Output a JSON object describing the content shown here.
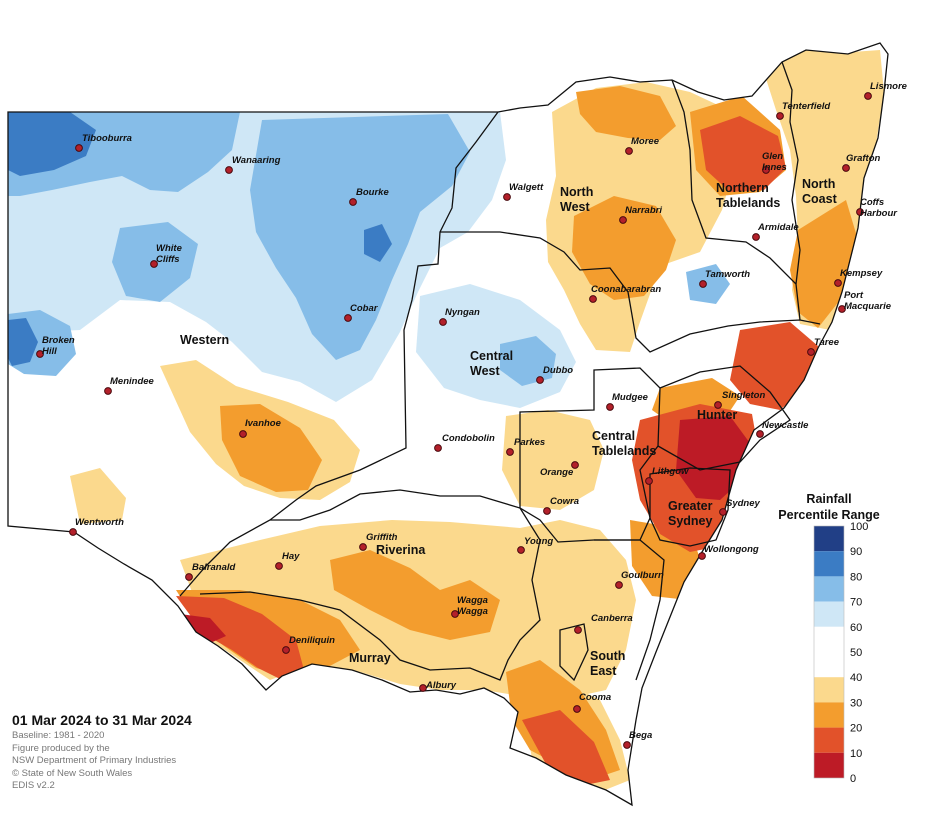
{
  "regions": [
    {
      "key": "western",
      "lines": [
        "Western"
      ]
    },
    {
      "key": "north_west",
      "lines": [
        "North",
        "West"
      ]
    },
    {
      "key": "northern_tablelands",
      "lines": [
        "Northern",
        "Tablelands"
      ]
    },
    {
      "key": "north_coast",
      "lines": [
        "North",
        "Coast"
      ]
    },
    {
      "key": "central_west",
      "lines": [
        "Central",
        "West"
      ]
    },
    {
      "key": "central_tablelands",
      "lines": [
        "Central",
        "Tablelands"
      ]
    },
    {
      "key": "hunter",
      "lines": [
        "Hunter"
      ]
    },
    {
      "key": "greater_sydney",
      "lines": [
        "Greater",
        "Sydney"
      ]
    },
    {
      "key": "riverina",
      "lines": [
        "Riverina"
      ]
    },
    {
      "key": "murray",
      "lines": [
        "Murray"
      ]
    },
    {
      "key": "south_east",
      "lines": [
        "South",
        "East"
      ]
    }
  ],
  "towns": [
    {
      "key": "tibooburra",
      "lines": [
        "Tibooburra"
      ]
    },
    {
      "key": "wanaaring",
      "lines": [
        "Wanaaring"
      ]
    },
    {
      "key": "bourke",
      "lines": [
        "Bourke"
      ]
    },
    {
      "key": "white_cliffs",
      "lines": [
        "White",
        "Cliffs"
      ]
    },
    {
      "key": "cobar",
      "lines": [
        "Cobar"
      ]
    },
    {
      "key": "broken_hill",
      "lines": [
        "Broken",
        "Hill"
      ]
    },
    {
      "key": "menindee",
      "lines": [
        "Menindee"
      ]
    },
    {
      "key": "ivanhoe",
      "lines": [
        "Ivanhoe"
      ]
    },
    {
      "key": "wentworth",
      "lines": [
        "Wentworth"
      ]
    },
    {
      "key": "balranald",
      "lines": [
        "Balranald"
      ]
    },
    {
      "key": "hay",
      "lines": [
        "Hay"
      ]
    },
    {
      "key": "deniliquin",
      "lines": [
        "Deniliquin"
      ]
    },
    {
      "key": "albury",
      "lines": [
        "Albury"
      ]
    },
    {
      "key": "griffith",
      "lines": [
        "Griffith"
      ]
    },
    {
      "key": "wagga_wagga",
      "lines": [
        "Wagga",
        "Wagga"
      ]
    },
    {
      "key": "young",
      "lines": [
        "Young"
      ]
    },
    {
      "key": "cowra",
      "lines": [
        "Cowra"
      ]
    },
    {
      "key": "orange",
      "lines": [
        "Orange"
      ]
    },
    {
      "key": "parkes",
      "lines": [
        "Parkes"
      ]
    },
    {
      "key": "condobolin",
      "lines": [
        "Condobolin"
      ]
    },
    {
      "key": "nyngan",
      "lines": [
        "Nyngan"
      ]
    },
    {
      "key": "dubbo",
      "lines": [
        "Dubbo"
      ]
    },
    {
      "key": "mudgee",
      "lines": [
        "Mudgee"
      ]
    },
    {
      "key": "walgett",
      "lines": [
        "Walgett"
      ]
    },
    {
      "key": "moree",
      "lines": [
        "Moree"
      ]
    },
    {
      "key": "narrabri",
      "lines": [
        "Narrabri"
      ]
    },
    {
      "key": "coonabarabran",
      "lines": [
        "Coonabarabran"
      ]
    },
    {
      "key": "tamworth",
      "lines": [
        "Tamworth"
      ]
    },
    {
      "key": "armidale",
      "lines": [
        "Armidale"
      ]
    },
    {
      "key": "glen_innes",
      "lines": [
        "Glen",
        "Innes"
      ]
    },
    {
      "key": "tenterfield",
      "lines": [
        "Tenterfield"
      ]
    },
    {
      "key": "lismore",
      "lines": [
        "Lismore"
      ]
    },
    {
      "key": "grafton",
      "lines": [
        "Grafton"
      ]
    },
    {
      "key": "coffs_harbour",
      "lines": [
        "Coffs",
        "Harbour"
      ]
    },
    {
      "key": "kempsey",
      "lines": [
        "Kempsey"
      ]
    },
    {
      "key": "port_macquarie",
      "lines": [
        "Port",
        "Macquarie"
      ]
    },
    {
      "key": "taree",
      "lines": [
        "Taree"
      ]
    },
    {
      "key": "singleton",
      "lines": [
        "Singleton"
      ]
    },
    {
      "key": "newcastle",
      "lines": [
        "Newcastle"
      ]
    },
    {
      "key": "lithgow",
      "lines": [
        "Lithgow"
      ]
    },
    {
      "key": "sydney",
      "lines": [
        "Sydney"
      ]
    },
    {
      "key": "wollongong",
      "lines": [
        "Wollongong"
      ]
    },
    {
      "key": "goulburn",
      "lines": [
        "Goulburn"
      ]
    },
    {
      "key": "canberra",
      "lines": [
        "Canberra"
      ]
    },
    {
      "key": "cooma",
      "lines": [
        "Cooma"
      ]
    },
    {
      "key": "bega",
      "lines": [
        "Bega"
      ]
    }
  ],
  "legend": {
    "title_lines": [
      "Rainfall",
      "Percentile Range"
    ],
    "ticks": [
      "100",
      "90",
      "80",
      "70",
      "60",
      "50",
      "40",
      "30",
      "20",
      "10",
      "0"
    ],
    "colors": [
      "#213f86",
      "#3b7cc4",
      "#86bde8",
      "#cfe7f6",
      "#ffffff",
      "#fbd98d",
      "#f39d2e",
      "#e2522a",
      "#bd1b26"
    ]
  },
  "footer": {
    "date_range": "01 Mar 2024 to 31 Mar 2024",
    "baseline": "Baseline: 1981 - 2020",
    "produced_by_1": "Figure produced by the",
    "produced_by_2": "NSW Department of Primary Industries",
    "copyright": "© State of New South Wales",
    "version": "EDIS v2.2"
  }
}
